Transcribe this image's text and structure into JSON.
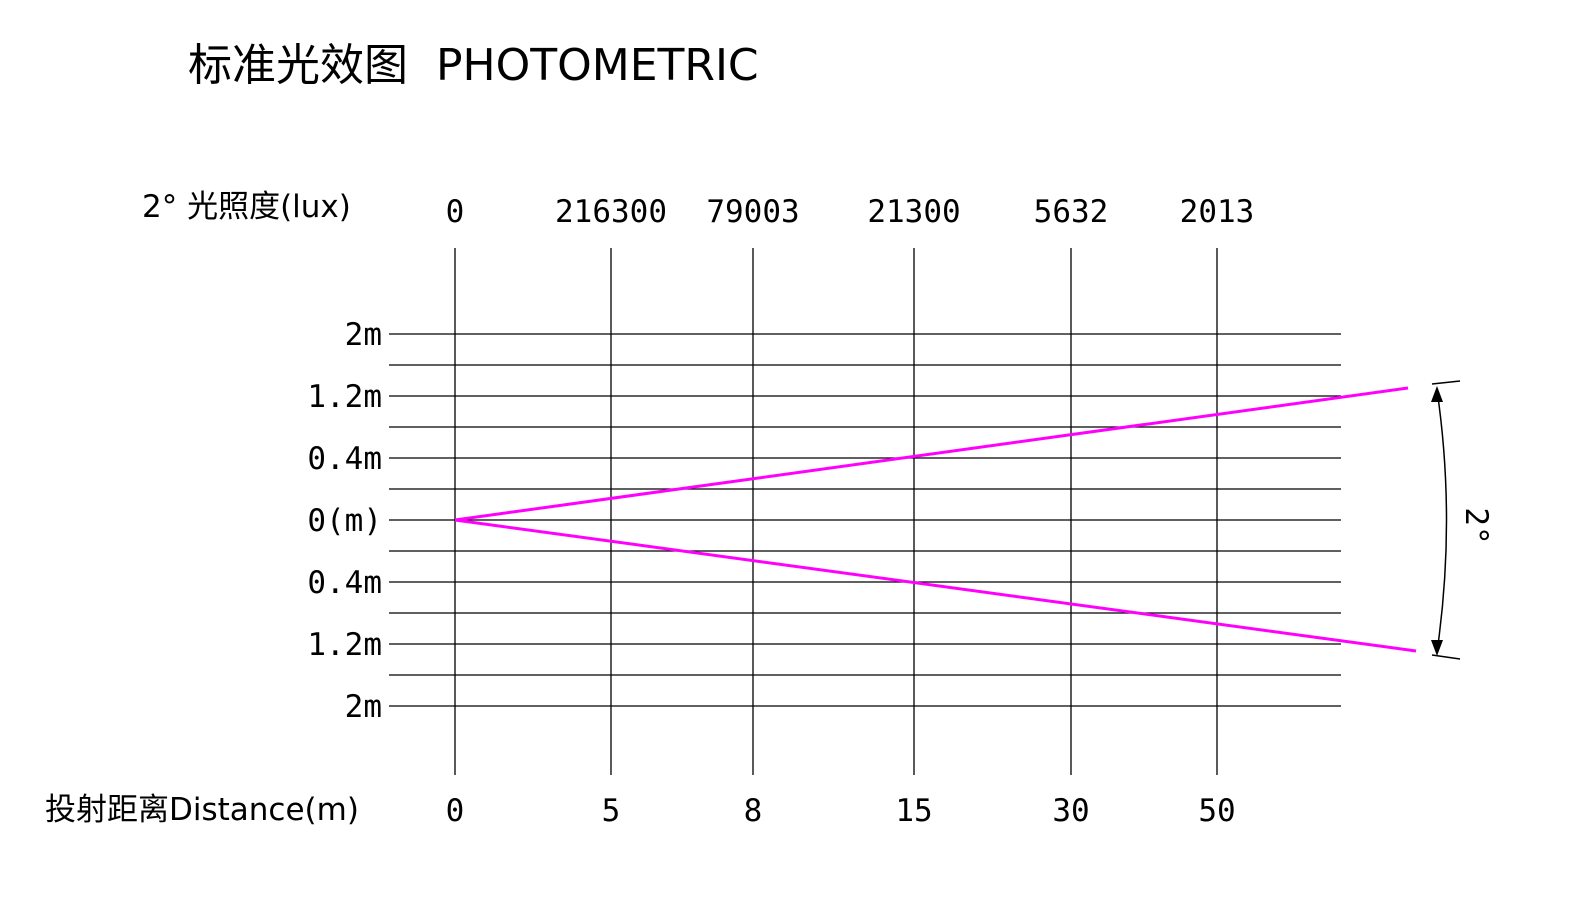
{
  "title": "标准光效图  PHOTOMETRIC",
  "illuminance_label": "2° 光照度(lux)",
  "distance_label": "投射距离Distance(m)",
  "beam_angle_label": "2°",
  "illuminance_values": [
    "0",
    "216300",
    "79003",
    "21300",
    "5632",
    "2013"
  ],
  "distance_values": [
    "0",
    "5",
    "8",
    "15",
    "30",
    "50"
  ],
  "offset_labels": [
    "2m",
    "1.2m",
    "0.4m",
    "0(m)",
    "0.4m",
    "1.2m",
    "2m"
  ],
  "colors": {
    "beam": "#ff00ff",
    "grid": "#000000"
  }
}
